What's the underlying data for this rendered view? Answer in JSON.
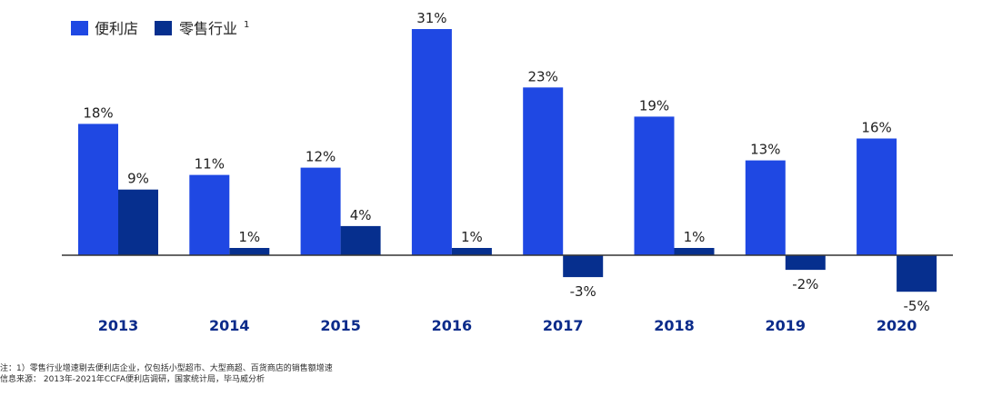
{
  "colors": {
    "convenience": "#1f48e3",
    "retail": "#062f8e",
    "axis": "#333333",
    "year_label": "#0b2b8a",
    "value_label": "#222222"
  },
  "chart_data": {
    "type": "bar",
    "categories": [
      "2013",
      "2014",
      "2015",
      "2016",
      "2017",
      "2018",
      "2019",
      "2020"
    ],
    "series": [
      {
        "name": "便利店",
        "values": [
          18,
          11,
          12,
          31,
          23,
          19,
          13,
          16
        ]
      },
      {
        "name": "零售行业",
        "values": [
          9,
          1,
          4,
          1,
          -3,
          1,
          -2,
          -5
        ]
      }
    ],
    "value_labels": [
      [
        "18%",
        "11%",
        "12%",
        "31%",
        "23%",
        "19%",
        "13%",
        "16%"
      ],
      [
        "9%",
        "1%",
        "4%",
        "1%",
        "-3%",
        "1%",
        "-2%",
        "-5%"
      ]
    ],
    "legend": {
      "entries": [
        "便利店",
        "零售行业"
      ],
      "superscript": "1",
      "position": "top-left"
    },
    "title": "",
    "xlabel": "",
    "ylabel": "",
    "ylim": [
      -5,
      31
    ],
    "grid": false
  },
  "footnotes": {
    "note": "注：1）零售行业增速剔去便利店企业，仅包括小型超市、大型商超、百货商店的销售额增速",
    "source": "信息来源：  2013年-2021年CCFA便利店调研，国家统计局，毕马威分析"
  }
}
